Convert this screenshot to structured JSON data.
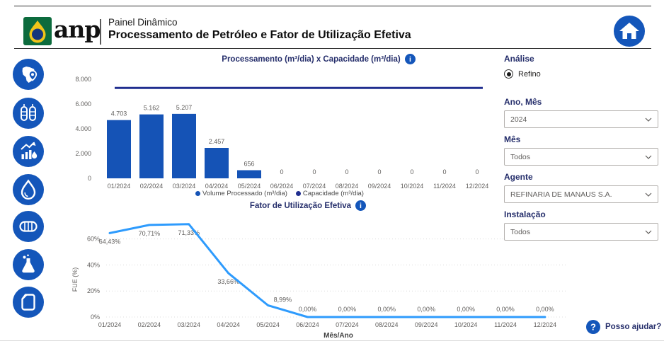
{
  "header": {
    "logo_text": "anp",
    "app_title": "Painel Dinâmico",
    "page_title": "Processamento de Petróleo e Fator de Utilização Efetiva"
  },
  "sidebar": {
    "items": [
      {
        "icon": "brazil-map-icon"
      },
      {
        "icon": "refinery-towers-icon"
      },
      {
        "icon": "production-trend-icon"
      },
      {
        "icon": "oil-droplet-icon"
      },
      {
        "icon": "storage-tanks-icon"
      },
      {
        "icon": "lab-flask-icon"
      },
      {
        "icon": "fuel-can-icon"
      }
    ]
  },
  "chart_data": [
    {
      "type": "bar",
      "title": "Processamento (m³/dia) x Capacidade (m³/dia)",
      "categories": [
        "01/2024",
        "02/2024",
        "03/2024",
        "04/2024",
        "05/2024",
        "06/2024",
        "07/2024",
        "08/2024",
        "09/2024",
        "10/2024",
        "11/2024",
        "12/2024"
      ],
      "series": [
        {
          "name": "Volume Processado (m³/dia)",
          "values": [
            4703,
            5162,
            5207,
            2457,
            656,
            0,
            0,
            0,
            0,
            0,
            0,
            0
          ],
          "labels": [
            "4.703",
            "5.162",
            "5.207",
            "2.457",
            "656",
            "0",
            "0",
            "0",
            "0",
            "0",
            "0",
            "0"
          ],
          "color": "#1553B6"
        },
        {
          "name": "Capacidade (m³/dia)",
          "role": "constant-line",
          "value": 7300,
          "color": "#202E8F"
        }
      ],
      "ylim": [
        0,
        8000
      ],
      "y_ticks": [
        {
          "v": 0,
          "label": "0"
        },
        {
          "v": 2000,
          "label": "2.000"
        },
        {
          "v": 4000,
          "label": "4.000"
        },
        {
          "v": 6000,
          "label": "6.000"
        },
        {
          "v": 8000,
          "label": "8.000"
        }
      ],
      "grid": false,
      "legend_position": "bottom"
    },
    {
      "type": "line",
      "title": "Fator de Utilização Efetiva",
      "categories": [
        "01/2024",
        "02/2024",
        "03/2024",
        "04/2024",
        "05/2024",
        "06/2024",
        "07/2024",
        "08/2024",
        "09/2024",
        "10/2024",
        "11/2024",
        "12/2024"
      ],
      "values": [
        64.43,
        70.71,
        71.33,
        33.66,
        8.99,
        0,
        0,
        0,
        0,
        0,
        0,
        0
      ],
      "labels": [
        "64,43%",
        "70,71%",
        "71,33%",
        "33,66%",
        "8,99%",
        "0,00%",
        "0,00%",
        "0,00%",
        "0,00%",
        "0,00%",
        "0,00%",
        "0,00%"
      ],
      "xlabel": "Mês/Ano",
      "ylabel": "FUE (%)",
      "ylim": [
        0,
        75
      ],
      "y_ticks": [
        {
          "v": 0,
          "label": "0%"
        },
        {
          "v": 20,
          "label": "20%"
        },
        {
          "v": 40,
          "label": "40%"
        },
        {
          "v": 60,
          "label": "60%"
        }
      ],
      "color": "#2E9BFD",
      "grid": "dotted"
    }
  ],
  "filters": {
    "analysis_label": "Análise",
    "analysis_options": [
      {
        "label": "Refino",
        "selected": true
      }
    ],
    "fields": [
      {
        "label": "Ano, Mês",
        "value": "2024"
      },
      {
        "label": "Mês",
        "value": "Todos"
      },
      {
        "label": "Agente",
        "value": "REFINARIA DE MANAUS S.A."
      },
      {
        "label": "Instalação",
        "value": "Todos"
      }
    ]
  },
  "help": {
    "label": "Posso ajudar?"
  },
  "colors": {
    "brand_blue": "#1456BA",
    "bar_blue": "#1553B6",
    "capacity_navy": "#202E8F",
    "fue_line_blue": "#2E9BFD",
    "navy_text": "#252E6B",
    "logo_green": "#0C6B3D",
    "logo_yellow": "#F0C419"
  }
}
